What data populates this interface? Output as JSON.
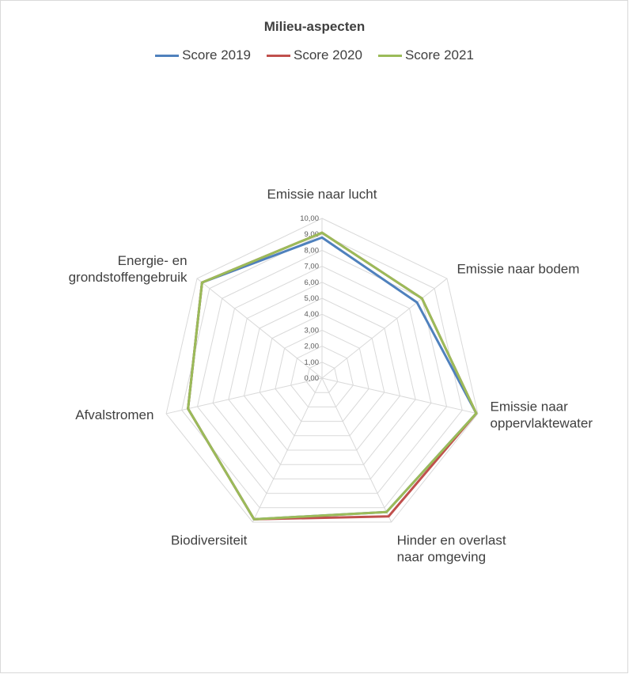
{
  "chart_data": {
    "type": "radar",
    "title": "Milieu-aspecten",
    "categories": [
      "Emissie naar lucht",
      "Emissie naar bodem",
      "Emissie naar oppervlaktewater",
      "Hinder en overlast naar omgeving",
      "Biodiversiteit",
      "Afvalstromen",
      "Energie- en grondstoffengebruik"
    ],
    "category_label_lines": [
      [
        "Emissie naar lucht"
      ],
      [
        "Emissie naar bodem"
      ],
      [
        "Emissie naar",
        "oppervlaktewater"
      ],
      [
        "Hinder en overlast",
        "naar omgeving"
      ],
      [
        "Biodiversiteit"
      ],
      [
        "Afvalstromen"
      ],
      [
        "Energie- en",
        "grondstoffengebruik"
      ]
    ],
    "series": [
      {
        "name": "Score 2019",
        "color": "#4f81bd",
        "values": [
          8.8,
          7.6,
          9.9,
          9.3,
          9.8,
          8.6,
          9.6
        ]
      },
      {
        "name": "Score 2020",
        "color": "#c0504d",
        "values": [
          9.1,
          8.0,
          9.9,
          9.6,
          9.8,
          8.6,
          9.6
        ]
      },
      {
        "name": "Score 2021",
        "color": "#9bbb59",
        "values": [
          9.1,
          8.0,
          9.9,
          9.3,
          9.8,
          8.6,
          9.6
        ]
      }
    ],
    "rlim": [
      0,
      10
    ],
    "ticks": [
      "0,00",
      "1,00",
      "2,00",
      "3,00",
      "4,00",
      "5,00",
      "6,00",
      "7,00",
      "8,00",
      "9,00",
      "10,00"
    ],
    "grid": true,
    "legend_position": "top"
  }
}
